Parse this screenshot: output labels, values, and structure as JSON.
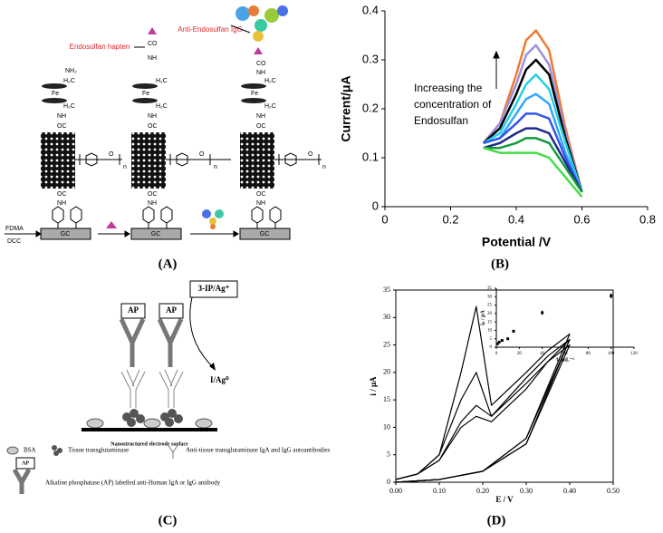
{
  "panel_a": {
    "hapten": "Endosulfan hapten",
    "igg": "Anti-Endosulfan IgG",
    "reagents": [
      "FDMA",
      "DCC"
    ],
    "electrode": "GC",
    "groups": {
      "nh2": "NH₂",
      "h2c": "H₂C",
      "fe": "Fe",
      "nh": "NH",
      "oc": "OC",
      "co": "CO",
      "o": "O",
      "n": "n"
    }
  },
  "panel_c": {
    "reagent": "3-IP/Ag⁺",
    "enzyme": "AP",
    "product": "I/Ag⁰",
    "surface": "Nanostructured electrode surface",
    "legend": [
      "BSA",
      "Tissue transglutaminase",
      "Anti-tissue transglutaminase IgA and IgG autoantibodies",
      "Alkaline phosphatase (AP) labelled anti-Human IgA or IgG antibody"
    ]
  },
  "captions": [
    "(A)",
    "(B)",
    "(C)",
    "(D)"
  ],
  "chart_data": [
    {
      "type": "line",
      "x_label": "Potential /V",
      "y_label": "Current/μA",
      "annotation": [
        "Increasing the",
        "concentration of",
        "Endosulfan"
      ],
      "x": [
        0.3,
        0.35,
        0.4,
        0.43,
        0.46,
        0.5,
        0.55,
        0.6
      ],
      "series": [
        {
          "color": "#f07a30",
          "values": [
            0.13,
            0.17,
            0.27,
            0.34,
            0.36,
            0.32,
            0.16,
            0.03
          ]
        },
        {
          "color": "#9f8fe0",
          "values": [
            0.13,
            0.17,
            0.25,
            0.31,
            0.33,
            0.29,
            0.15,
            0.03
          ]
        },
        {
          "color": "#000000",
          "values": [
            0.13,
            0.16,
            0.23,
            0.28,
            0.3,
            0.27,
            0.14,
            0.03
          ]
        },
        {
          "color": "#22d0e0",
          "values": [
            0.13,
            0.15,
            0.21,
            0.25,
            0.27,
            0.24,
            0.13,
            0.03
          ]
        },
        {
          "color": "#33a6ff",
          "values": [
            0.13,
            0.14,
            0.19,
            0.22,
            0.23,
            0.21,
            0.11,
            0.03
          ]
        },
        {
          "color": "#3355ee",
          "values": [
            0.13,
            0.14,
            0.17,
            0.19,
            0.19,
            0.18,
            0.1,
            0.03
          ]
        },
        {
          "color": "#1c2a8a",
          "values": [
            0.12,
            0.13,
            0.15,
            0.16,
            0.16,
            0.15,
            0.09,
            0.03
          ]
        },
        {
          "color": "#129a3a",
          "values": [
            0.12,
            0.12,
            0.13,
            0.14,
            0.14,
            0.13,
            0.08,
            0.03
          ]
        },
        {
          "color": "#44dd44",
          "values": [
            0.12,
            0.11,
            0.11,
            0.11,
            0.11,
            0.1,
            0.06,
            0.02
          ]
        }
      ],
      "xlim": [
        0,
        0.8
      ],
      "xticks": [
        0,
        0.2,
        0.4,
        0.6,
        0.8
      ],
      "ylim": [
        0,
        0.4
      ],
      "yticks": [
        0,
        0.1,
        0.2,
        0.3,
        0.4
      ],
      "frame": false
    },
    {
      "type": "line",
      "x_label": "E / V",
      "y_label": "i / μA",
      "series": [
        {
          "color": "#000000",
          "x": [
            0,
            0.05,
            0.1,
            0.15,
            0.185,
            0.22,
            0.3,
            0.35,
            0.4,
            0.3,
            0.2,
            0.1,
            0
          ],
          "values": [
            0.5,
            1.5,
            5,
            20,
            32,
            14,
            20,
            24,
            27,
            8,
            2,
            0.5,
            0
          ]
        },
        {
          "color": "#000000",
          "x": [
            0,
            0.05,
            0.1,
            0.15,
            0.185,
            0.22,
            0.3,
            0.35,
            0.4,
            0.3,
            0.2,
            0.1,
            0
          ],
          "values": [
            0.5,
            1.5,
            5,
            15,
            20,
            12,
            19,
            23,
            26,
            8,
            2,
            0.5,
            0
          ]
        },
        {
          "color": "#000000",
          "x": [
            0,
            0.05,
            0.1,
            0.15,
            0.185,
            0.22,
            0.3,
            0.35,
            0.4,
            0.3,
            0.2,
            0.1,
            0
          ],
          "values": [
            0.5,
            1.5,
            4,
            11,
            14,
            12,
            18,
            22,
            26,
            7,
            2,
            0.5,
            0
          ]
        },
        {
          "color": "#000000",
          "x": [
            0,
            0.05,
            0.1,
            0.15,
            0.185,
            0.22,
            0.3,
            0.35,
            0.4,
            0.3,
            0.2,
            0.1,
            0
          ],
          "values": [
            0.5,
            1.5,
            4,
            10,
            12,
            11,
            17,
            22,
            25,
            7,
            2,
            0.5,
            0
          ]
        }
      ],
      "xlim": [
        0,
        0.5
      ],
      "xticks": [
        {
          "value": 0,
          "label": "0.00"
        },
        {
          "value": 0.1,
          "label": "0.10"
        },
        {
          "value": 0.2,
          "label": "0.20"
        },
        {
          "value": 0.3,
          "label": "0.30"
        },
        {
          "value": 0.4,
          "label": "0.40"
        },
        {
          "value": 0.5,
          "label": "0.50"
        }
      ],
      "ylim": [
        0,
        35
      ],
      "yticks": [
        0,
        5,
        10,
        15,
        20,
        25,
        30,
        35
      ],
      "frame": true
    },
    {
      "type": "scatter",
      "x_label": "U mL⁻¹",
      "y_label": "iₚ / μA",
      "color": "#000000",
      "x": [
        1,
        2.5,
        5,
        10,
        15,
        40,
        100
      ],
      "values": [
        2,
        3,
        4,
        5,
        9.5,
        20.5,
        30.5
      ],
      "errors": [
        0.5,
        0.5,
        0.6,
        0.6,
        0.8,
        1.2,
        1.6
      ],
      "xlim": [
        0,
        120
      ],
      "xticks": [
        0,
        20,
        40,
        60,
        80,
        100,
        120
      ],
      "ylim": [
        0,
        35
      ],
      "yticks": [
        0,
        5,
        10,
        15,
        20,
        25,
        30,
        35
      ],
      "frame": false
    }
  ]
}
